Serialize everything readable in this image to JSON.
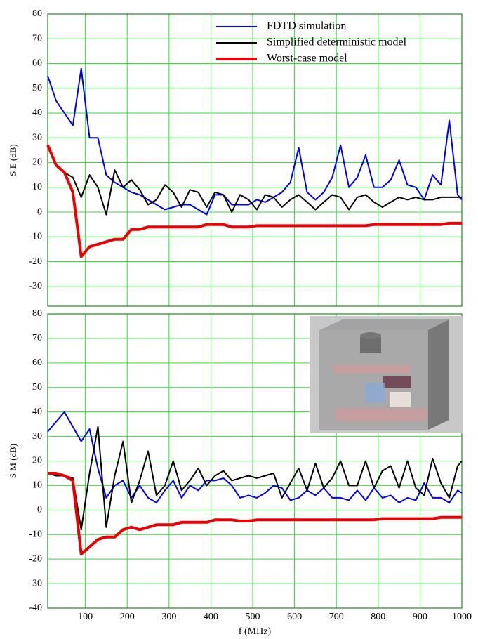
{
  "chart_data": [
    {
      "type": "line",
      "ylabel": "S E (dB)",
      "legend": "upper right",
      "grid": true,
      "x_tick_labels": false,
      "xlim": [
        10,
        1000
      ],
      "ylim": [
        -38,
        80
      ],
      "xticks": [
        100,
        200,
        300,
        400,
        500,
        600,
        700,
        800,
        900,
        1000
      ],
      "yticks": [
        -30,
        -20,
        -10,
        0,
        10,
        20,
        30,
        40,
        50,
        60,
        70,
        80
      ],
      "x": [
        10,
        30,
        50,
        70,
        90,
        110,
        130,
        150,
        170,
        190,
        210,
        230,
        250,
        270,
        290,
        310,
        330,
        350,
        370,
        390,
        410,
        430,
        450,
        470,
        490,
        510,
        530,
        550,
        570,
        590,
        610,
        630,
        650,
        670,
        690,
        710,
        730,
        750,
        770,
        790,
        810,
        830,
        850,
        870,
        890,
        910,
        930,
        950,
        970,
        990,
        1000
      ],
      "series": [
        {
          "name": "FDTD simulation",
          "color": "#0000ee",
          "width": 2,
          "values": [
            55,
            45,
            40,
            35,
            58,
            30,
            30,
            15,
            12,
            10,
            8,
            7,
            5,
            3,
            1,
            2,
            3,
            3,
            1,
            -1,
            7,
            7,
            3,
            3,
            3,
            5,
            4,
            6,
            8,
            12,
            26,
            8,
            5,
            8,
            14,
            27,
            10,
            14,
            23,
            10,
            10,
            13,
            21,
            11,
            10,
            5,
            15,
            11,
            37,
            7,
            5
          ]
        },
        {
          "name": "Simplified deterministic model",
          "color": "#000000",
          "width": 2,
          "values": [
            27,
            19,
            16,
            14,
            6,
            15,
            10,
            -1,
            17,
            10,
            13,
            9,
            3,
            5,
            11,
            8,
            2,
            9,
            8,
            2,
            8,
            7,
            0,
            7,
            5,
            1,
            7,
            6,
            2,
            5,
            7,
            4,
            1,
            4,
            7,
            6,
            1,
            6,
            7,
            4,
            2,
            4,
            6,
            5,
            6,
            5,
            5,
            6,
            6,
            6,
            6
          ]
        },
        {
          "name": "Worst-case model",
          "color": "#ee0000",
          "width": 4,
          "values": [
            27,
            19,
            16,
            8,
            -18,
            -14,
            -13,
            -12,
            -11,
            -11,
            -7,
            -7,
            -6,
            -6,
            -6,
            -6,
            -6,
            -6,
            -6,
            -5,
            -5,
            -5,
            -6,
            -6,
            -6,
            -5.5,
            -5.5,
            -5.5,
            -5.5,
            -5.5,
            -5.5,
            -5.5,
            -5.5,
            -5.5,
            -5.5,
            -5.5,
            -5.5,
            -5.5,
            -5.5,
            -5,
            -5,
            -5,
            -5,
            -5,
            -5,
            -5,
            -5,
            -5,
            -4.5,
            -4.5,
            -4.5
          ]
        }
      ]
    },
    {
      "type": "line",
      "ylabel": "S M (dB)",
      "xlabel": "f (MHz)",
      "legend": "none",
      "grid": true,
      "x_tick_labels": true,
      "xlim": [
        10,
        1000
      ],
      "ylim": [
        -40,
        80
      ],
      "xticks": [
        100,
        200,
        300,
        400,
        500,
        600,
        700,
        800,
        900,
        1000
      ],
      "yticks": [
        -40,
        -30,
        -20,
        -10,
        0,
        10,
        20,
        30,
        40,
        50,
        60,
        70,
        80
      ],
      "x": [
        10,
        30,
        50,
        70,
        90,
        110,
        130,
        150,
        170,
        190,
        210,
        230,
        250,
        270,
        290,
        310,
        330,
        350,
        370,
        390,
        410,
        430,
        450,
        470,
        490,
        510,
        530,
        550,
        570,
        590,
        610,
        630,
        650,
        670,
        690,
        710,
        730,
        750,
        770,
        790,
        810,
        830,
        850,
        870,
        890,
        910,
        930,
        950,
        970,
        990,
        1000
      ],
      "series": [
        {
          "color": "#0000ee",
          "width": 2,
          "values": [
            32,
            36,
            40,
            34,
            28,
            33,
            17,
            5,
            10,
            12,
            5,
            10,
            5,
            3,
            8,
            12,
            5,
            10,
            8,
            12,
            12,
            13,
            10,
            5,
            6,
            5,
            7,
            10,
            9,
            4,
            5,
            8,
            6,
            9,
            5,
            5,
            4,
            8,
            4,
            9,
            5,
            6,
            3,
            5,
            4,
            11,
            5,
            5,
            3,
            8,
            7
          ]
        },
        {
          "color": "#000000",
          "width": 2,
          "values": [
            15,
            14,
            14,
            13,
            -8,
            15,
            34,
            -7,
            14,
            28,
            3,
            12,
            24,
            6,
            10,
            20,
            8,
            12,
            17,
            10,
            14,
            16,
            12,
            13,
            14,
            13,
            14,
            15,
            5,
            11,
            17,
            8,
            19,
            9,
            13,
            20,
            10,
            10,
            20,
            9,
            16,
            18,
            9,
            20,
            9,
            6,
            21,
            11,
            5,
            18,
            20
          ]
        },
        {
          "color": "#ee0000",
          "width": 4,
          "values": [
            15,
            15,
            14,
            12,
            -18,
            -15,
            -12,
            -11,
            -11,
            -8,
            -7,
            -8,
            -7,
            -6,
            -6,
            -6,
            -5,
            -5,
            -5,
            -5,
            -4,
            -4,
            -4,
            -4.5,
            -4.5,
            -4,
            -4,
            -4,
            -4,
            -4,
            -4,
            -4,
            -4,
            -4,
            -4,
            -4,
            -4,
            -4,
            -4,
            -4,
            -3.5,
            -3.5,
            -3.5,
            -3.5,
            -3.5,
            -3.5,
            -3.5,
            -3,
            -3,
            -3,
            -3
          ]
        }
      ]
    }
  ]
}
